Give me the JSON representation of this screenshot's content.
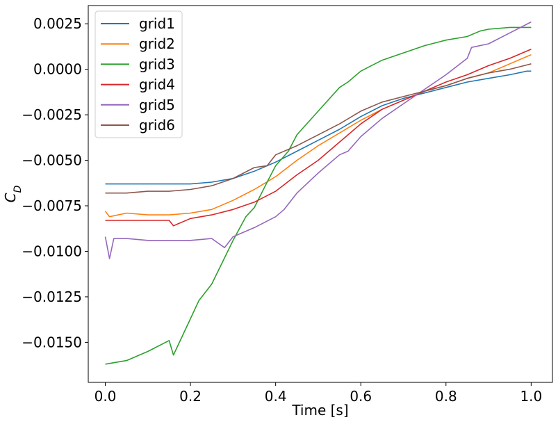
{
  "chart_data": {
    "type": "line",
    "title": "",
    "xlabel": "Time [s]",
    "ylabel_base": "C",
    "ylabel_sub": "D",
    "xlim": [
      -0.04,
      1.05
    ],
    "ylim": [
      -0.0172,
      0.0035
    ],
    "xticks": [
      0.0,
      0.2,
      0.4,
      0.6,
      0.8,
      1.0
    ],
    "xtick_labels": [
      "0.0",
      "0.2",
      "0.4",
      "0.6",
      "0.8",
      "1.0"
    ],
    "yticks": [
      0.0025,
      0.0,
      -0.0025,
      -0.005,
      -0.0075,
      -0.01,
      -0.0125,
      -0.015
    ],
    "ytick_labels": [
      "0.0025",
      "0.0000",
      "−0.0025",
      "−0.0050",
      "−0.0075",
      "−0.0100",
      "−0.0125",
      "−0.0150"
    ],
    "grid": false,
    "legend_position": "top-left",
    "series": [
      {
        "name": "grid1",
        "color": "#1f77b4",
        "x": [
          0.0,
          0.05,
          0.1,
          0.15,
          0.2,
          0.25,
          0.3,
          0.35,
          0.4,
          0.45,
          0.5,
          0.55,
          0.6,
          0.65,
          0.7,
          0.75,
          0.8,
          0.85,
          0.9,
          0.95,
          0.99,
          1.0
        ],
        "y": [
          -0.0063,
          -0.0063,
          -0.0063,
          -0.0063,
          -0.0063,
          -0.0062,
          -0.006,
          -0.0056,
          -0.0051,
          -0.0045,
          -0.0039,
          -0.0033,
          -0.0026,
          -0.002,
          -0.0016,
          -0.0013,
          -0.001,
          -0.0007,
          -0.0005,
          -0.0003,
          -0.0001,
          -0.0001
        ]
      },
      {
        "name": "grid2",
        "color": "#ff7f0e",
        "x": [
          0.0,
          0.01,
          0.05,
          0.1,
          0.15,
          0.2,
          0.25,
          0.3,
          0.35,
          0.4,
          0.45,
          0.5,
          0.55,
          0.6,
          0.65,
          0.7,
          0.75,
          0.8,
          0.85,
          0.9,
          0.95,
          1.0
        ],
        "y": [
          -0.0078,
          -0.0081,
          -0.0079,
          -0.008,
          -0.008,
          -0.0079,
          -0.0077,
          -0.0072,
          -0.0066,
          -0.0059,
          -0.005,
          -0.0042,
          -0.0035,
          -0.0028,
          -0.0022,
          -0.0017,
          -0.0012,
          -0.0009,
          -0.0005,
          -0.0002,
          0.0003,
          0.0008
        ]
      },
      {
        "name": "grid3",
        "color": "#2ca02c",
        "x": [
          0.0,
          0.05,
          0.1,
          0.15,
          0.16,
          0.2,
          0.22,
          0.25,
          0.3,
          0.33,
          0.35,
          0.38,
          0.4,
          0.43,
          0.45,
          0.5,
          0.55,
          0.57,
          0.6,
          0.65,
          0.7,
          0.75,
          0.8,
          0.85,
          0.88,
          0.9,
          0.95,
          1.0
        ],
        "y": [
          -0.0162,
          -0.016,
          -0.0155,
          -0.0149,
          -0.0157,
          -0.0137,
          -0.0127,
          -0.0118,
          -0.0094,
          -0.0081,
          -0.0076,
          -0.0062,
          -0.0053,
          -0.0045,
          -0.0036,
          -0.0023,
          -0.001,
          -0.0007,
          -0.0001,
          0.0005,
          0.0009,
          0.0013,
          0.0016,
          0.0018,
          0.0021,
          0.0022,
          0.0023,
          0.0023
        ]
      },
      {
        "name": "grid4",
        "color": "#d62728",
        "x": [
          0.0,
          0.05,
          0.1,
          0.15,
          0.16,
          0.2,
          0.25,
          0.3,
          0.35,
          0.4,
          0.45,
          0.5,
          0.55,
          0.6,
          0.65,
          0.7,
          0.75,
          0.8,
          0.85,
          0.9,
          0.95,
          1.0
        ],
        "y": [
          -0.0083,
          -0.0083,
          -0.0083,
          -0.0083,
          -0.0086,
          -0.0082,
          -0.008,
          -0.0077,
          -0.0073,
          -0.0067,
          -0.0058,
          -0.005,
          -0.004,
          -0.003,
          -0.0022,
          -0.0017,
          -0.0012,
          -0.0007,
          -0.0003,
          0.0002,
          0.0006,
          0.0011
        ]
      },
      {
        "name": "grid5",
        "color": "#9467bd",
        "x": [
          0.0,
          0.01,
          0.02,
          0.05,
          0.1,
          0.15,
          0.2,
          0.25,
          0.28,
          0.3,
          0.35,
          0.4,
          0.42,
          0.45,
          0.5,
          0.55,
          0.57,
          0.6,
          0.65,
          0.7,
          0.75,
          0.8,
          0.85,
          0.86,
          0.9,
          0.95,
          1.0
        ],
        "y": [
          -0.0092,
          -0.0104,
          -0.0093,
          -0.0093,
          -0.0094,
          -0.0094,
          -0.0094,
          -0.0093,
          -0.0098,
          -0.0092,
          -0.0087,
          -0.0081,
          -0.0077,
          -0.0068,
          -0.0057,
          -0.0047,
          -0.0045,
          -0.0037,
          -0.0027,
          -0.0019,
          -0.0011,
          -0.0003,
          0.0006,
          0.0012,
          0.0014,
          0.002,
          0.0026
        ]
      },
      {
        "name": "grid6",
        "color": "#8c564b",
        "x": [
          0.0,
          0.05,
          0.1,
          0.15,
          0.2,
          0.25,
          0.3,
          0.35,
          0.38,
          0.4,
          0.45,
          0.5,
          0.55,
          0.6,
          0.65,
          0.7,
          0.75,
          0.8,
          0.85,
          0.9,
          0.95,
          1.0
        ],
        "y": [
          -0.0068,
          -0.0068,
          -0.0067,
          -0.0067,
          -0.0066,
          -0.0064,
          -0.006,
          -0.0054,
          -0.0053,
          -0.0047,
          -0.0042,
          -0.0036,
          -0.003,
          -0.0023,
          -0.0018,
          -0.0015,
          -0.0012,
          -0.0009,
          -0.0005,
          -0.0002,
          0.0,
          0.0003
        ]
      }
    ]
  }
}
